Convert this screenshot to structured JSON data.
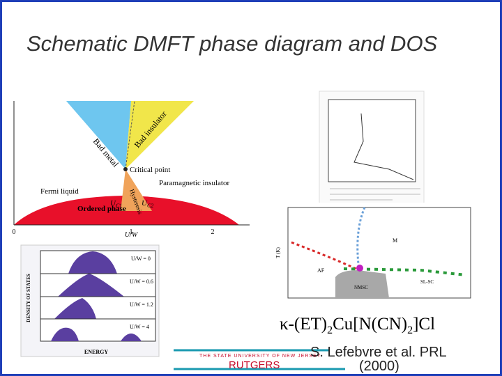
{
  "header": {
    "title": "Schematic DMFT phase diagram and DOS"
  },
  "phase_diagram": {
    "regions": [
      "Bad metal",
      "Bad insulator",
      "Critical point",
      "Paramagnetic insulator",
      "Fermi liquid",
      "Ordered phase",
      "Hysteresis"
    ],
    "uc1": "U",
    "uc1_sub": "C1",
    "uc2": "U",
    "uc2_sub": "C2",
    "x_label": "U/W",
    "x_ticks": [
      "0",
      "1",
      "2"
    ]
  },
  "dos_panel": {
    "rows": [
      "U/W = 0",
      "U/W = 0.6",
      "U/W = 1.2",
      "U/W = 4"
    ],
    "x_label": "ENERGY",
    "y_label": "DENSITY OF STATES"
  },
  "experiment": {
    "regions": [
      "AF",
      "M",
      "NMSC",
      "SL-SC"
    ],
    "y_label": "T (K)"
  },
  "formula": [
    "κ-(ET)",
    "2",
    "Cu[N(CN)",
    "2",
    "]Cl"
  ],
  "citation": {
    "line1": "S. Lefebvre et al. PRL",
    "line2": "(2000)"
  },
  "footer": {
    "university": "THE STATE UNIVERSITY OF NEW JERSEY",
    "name": "RUTGERS"
  }
}
